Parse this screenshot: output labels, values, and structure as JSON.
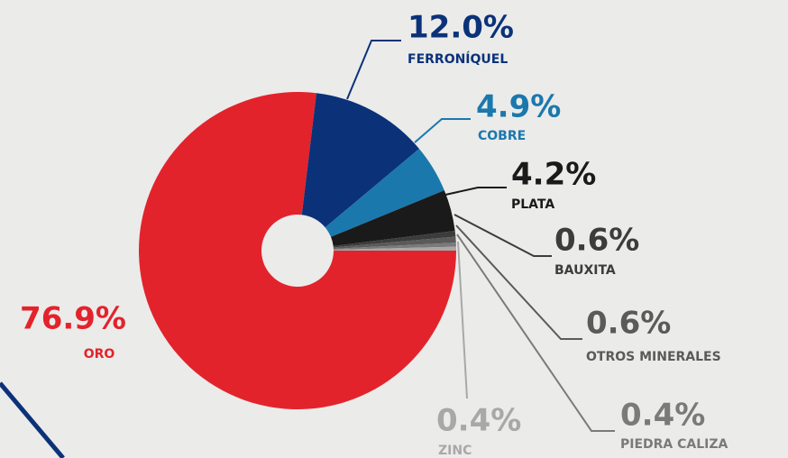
{
  "chart_data": {
    "type": "pie",
    "categories": [
      "ORO",
      "FERRONÍQUEL",
      "COBRE",
      "PLATA",
      "BAUXITA",
      "OTROS MINERALES",
      "PIEDRA CALIZA",
      "ZINC"
    ],
    "values": [
      76.9,
      12.0,
      4.9,
      4.2,
      0.6,
      0.6,
      0.4,
      0.4
    ],
    "value_labels": [
      "76.9%",
      "12.0%",
      "4.9%",
      "4.2%",
      "0.6%",
      "0.6%",
      "0.4%",
      "0.4%"
    ],
    "colors": [
      "#e3232b",
      "#0b3279",
      "#1b78ad",
      "#1a1a1a",
      "#3c3c3c",
      "#5a5a5a",
      "#7a7a7a",
      "#a8a8a8"
    ]
  }
}
